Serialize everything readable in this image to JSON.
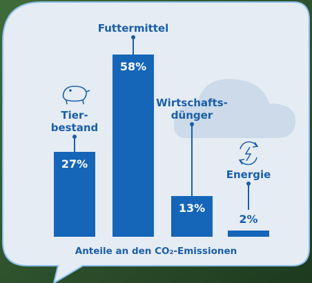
{
  "chart_data": {
    "type": "bar",
    "title": "Anteile an den CO₂-Emissionen",
    "categories": [
      "Tier-\nbestand",
      "Futtermittel",
      "Wirtschafts-\ndünger",
      "Energie"
    ],
    "values": [
      27,
      58,
      13,
      2
    ],
    "value_labels": [
      "27%",
      "58%",
      "13%",
      "2%"
    ],
    "color": "#1565b8"
  }
}
